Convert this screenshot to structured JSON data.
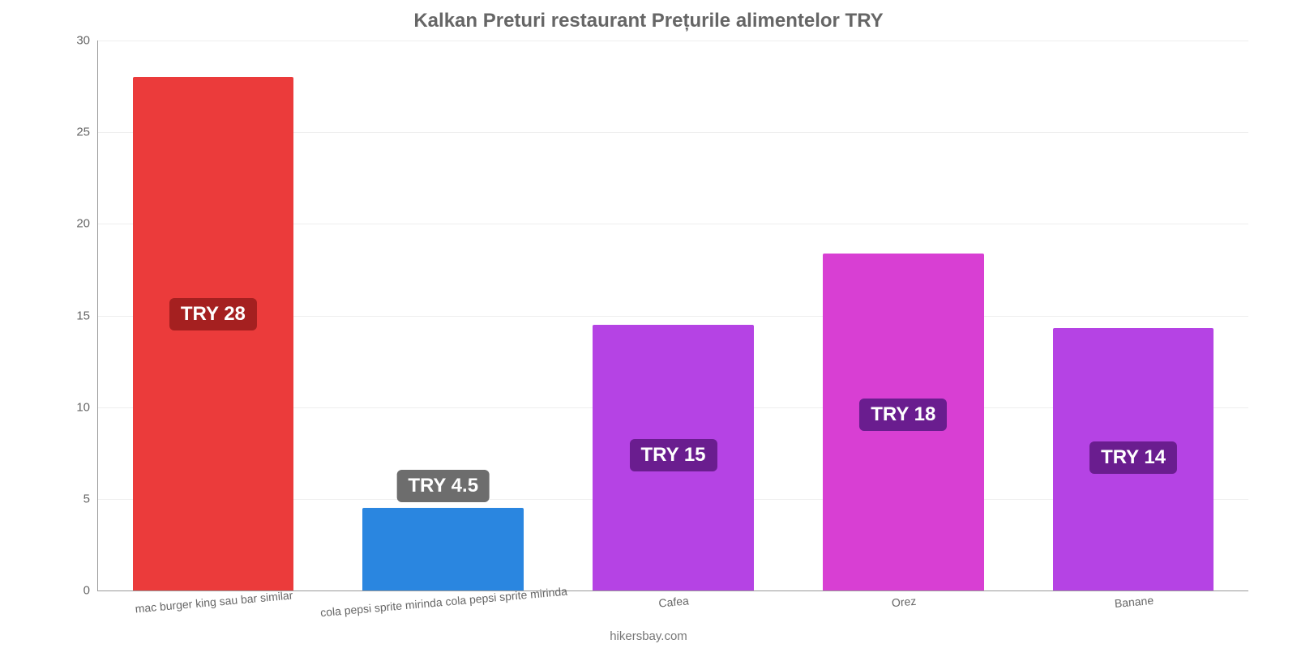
{
  "chart": {
    "type": "bar",
    "title": "Kalkan Preturi restaurant Prețurile alimentelor TRY",
    "title_fontsize": 24,
    "title_color": "#666666",
    "background_color": "#ffffff",
    "grid_color": "#eeeeee",
    "axis_color": "#999999",
    "tick_color": "#666666",
    "tick_fontsize": 15,
    "xlabel_fontsize": 14,
    "xlabel_rotation_deg": -5,
    "ylim": [
      0,
      30
    ],
    "yticks": [
      0,
      5,
      10,
      15,
      20,
      25,
      30
    ],
    "bar_width": 0.7,
    "categories": [
      "mac burger king sau bar similar",
      "cola pepsi sprite mirinda cola pepsi sprite mirinda",
      "Cafea",
      "Orez",
      "Banane"
    ],
    "values": [
      28,
      4.5,
      14.5,
      18.4,
      14.3
    ],
    "bar_colors": [
      "#eb3b3b",
      "#2a86e0",
      "#b543e4",
      "#d83fd3",
      "#b543e4"
    ],
    "value_labels": [
      "TRY 28",
      "TRY 4.5",
      "TRY 15",
      "TRY 18",
      "TRY 14"
    ],
    "value_label_bg": [
      "#a52020",
      "#6d6d6d",
      "#6a1d8f",
      "#6a1d8f",
      "#6a1d8f"
    ],
    "value_label_fontsize": 24,
    "value_label_color": "#ffffff",
    "footer": "hikersbay.com",
    "footer_color": "#777777",
    "footer_fontsize": 15
  }
}
